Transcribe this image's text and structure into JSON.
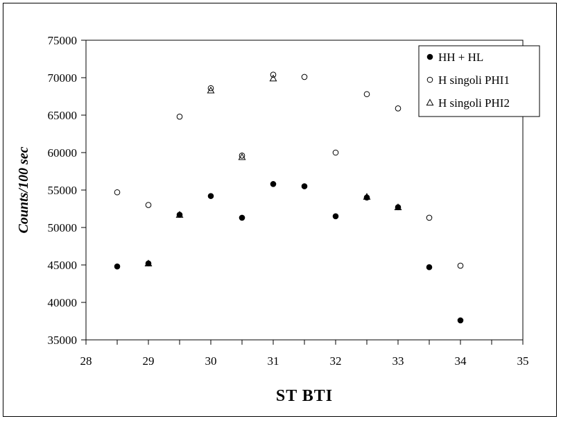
{
  "chart_data": {
    "type": "scatter",
    "title": "",
    "xlabel": "ST BTI",
    "ylabel": "Counts/100 sec",
    "xlim": [
      28,
      35
    ],
    "ylim": [
      35000,
      75000
    ],
    "x_ticks": [
      28,
      29,
      30,
      31,
      32,
      33,
      34,
      35
    ],
    "y_ticks": [
      35000,
      40000,
      45000,
      50000,
      55000,
      60000,
      65000,
      70000,
      75000
    ],
    "grid": false,
    "legend_position": "top-right",
    "series": [
      {
        "name": "HH + HL",
        "marker": "filled-circle",
        "color": "#000000",
        "points": [
          {
            "x": 28.5,
            "y": 44800
          },
          {
            "x": 29.0,
            "y": 45200
          },
          {
            "x": 29.5,
            "y": 51700
          },
          {
            "x": 30.0,
            "y": 54200
          },
          {
            "x": 30.5,
            "y": 51300
          },
          {
            "x": 31.0,
            "y": 55800
          },
          {
            "x": 31.5,
            "y": 55500
          },
          {
            "x": 32.0,
            "y": 51500
          },
          {
            "x": 32.5,
            "y": 54000
          },
          {
            "x": 33.0,
            "y": 52700
          },
          {
            "x": 33.5,
            "y": 44700
          },
          {
            "x": 34.0,
            "y": 37600
          }
        ]
      },
      {
        "name": "H singoli PHI1",
        "marker": "open-circle",
        "color": "#000000",
        "points": [
          {
            "x": 28.5,
            "y": 54700
          },
          {
            "x": 29.0,
            "y": 53000
          },
          {
            "x": 29.5,
            "y": 64800
          },
          {
            "x": 30.0,
            "y": 68600
          },
          {
            "x": 30.5,
            "y": 59600
          },
          {
            "x": 31.0,
            "y": 70400
          },
          {
            "x": 31.5,
            "y": 70100
          },
          {
            "x": 32.0,
            "y": 60000
          },
          {
            "x": 32.5,
            "y": 67800
          },
          {
            "x": 33.0,
            "y": 65900
          },
          {
            "x": 33.5,
            "y": 51300
          },
          {
            "x": 34.0,
            "y": 44900
          }
        ]
      },
      {
        "name": "H singoli PHI2",
        "marker": "open-triangle",
        "color": "#000000",
        "points": [
          {
            "x": 29.0,
            "y": 45200
          },
          {
            "x": 29.5,
            "y": 51700
          },
          {
            "x": 30.0,
            "y": 68300
          },
          {
            "x": 30.5,
            "y": 59400
          },
          {
            "x": 31.0,
            "y": 69900
          },
          {
            "x": 32.5,
            "y": 54100
          },
          {
            "x": 33.0,
            "y": 52700
          }
        ]
      }
    ]
  }
}
